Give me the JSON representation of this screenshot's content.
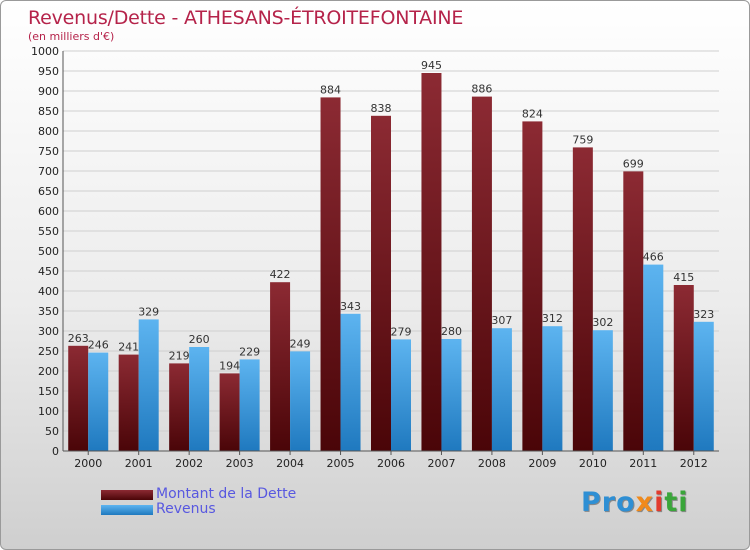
{
  "chart_data": {
    "type": "bar",
    "title": "Revenus/Dette - ATHESANS-ÉTROITEFONTAINE",
    "subtitle": "(en milliers d'€)",
    "categories": [
      "2000",
      "2001",
      "2002",
      "2003",
      "2004",
      "2005",
      "2006",
      "2007",
      "2008",
      "2009",
      "2010",
      "2011",
      "2012"
    ],
    "series": [
      {
        "name": "Montant de la Dette",
        "color": "#7a1a24",
        "values": [
          263,
          241,
          219,
          194,
          422,
          884,
          838,
          945,
          886,
          824,
          759,
          699,
          415
        ]
      },
      {
        "name": "Revenus",
        "color": "#3a9ae0",
        "values": [
          246,
          329,
          260,
          229,
          249,
          343,
          279,
          280,
          307,
          312,
          302,
          466,
          323
        ]
      }
    ],
    "ylim": [
      0,
      1000
    ],
    "yticks": [
      0,
      50,
      100,
      150,
      200,
      250,
      300,
      350,
      400,
      450,
      500,
      550,
      600,
      650,
      700,
      750,
      800,
      850,
      900,
      950,
      1000
    ],
    "grid": true,
    "legend": "bottom-left"
  },
  "logo": {
    "p1": "Pro",
    "p2": "x",
    "p3": "i",
    "p4": "ti"
  }
}
